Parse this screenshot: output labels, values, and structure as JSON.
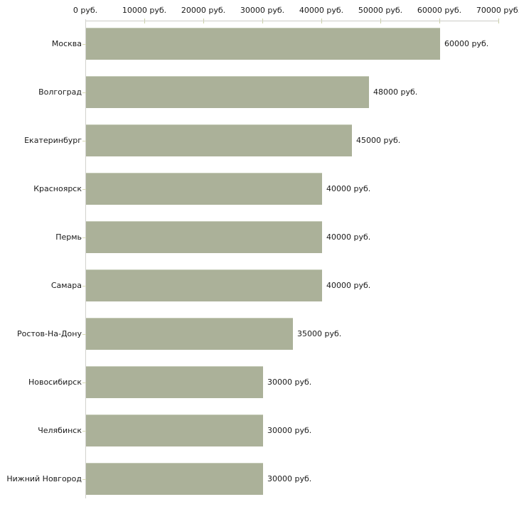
{
  "chart_data": {
    "type": "bar",
    "orientation": "horizontal",
    "title": "",
    "xlabel": "",
    "ylabel": "",
    "unit": "руб.",
    "xlim": [
      0,
      70000
    ],
    "grid": false,
    "legend": null,
    "categories": [
      "Москва",
      "Волгоград",
      "Екатеринбург",
      "Красноярск",
      "Пермь",
      "Самара",
      "Ростов-На-Дону",
      "Новосибирск",
      "Челябинск",
      "Нижний Новгород"
    ],
    "values": [
      60000,
      48000,
      45000,
      40000,
      40000,
      40000,
      35000,
      30000,
      30000,
      30000
    ],
    "value_labels": [
      "60000 руб.",
      "48000 руб.",
      "45000 руб.",
      "40000 руб.",
      "40000 руб.",
      "40000 руб.",
      "35000 руб.",
      "30000 руб.",
      "30000 руб.",
      "30000 руб."
    ],
    "x_ticks": [
      0,
      10000,
      20000,
      30000,
      40000,
      50000,
      60000,
      70000
    ],
    "x_tick_labels": [
      "0 руб.",
      "10000 руб.",
      "20000 руб.",
      "30000 руб.",
      "40000 руб.",
      "50000 руб.",
      "60000 руб.",
      "70000 руб."
    ],
    "colors": {
      "bar": "#abb199",
      "bar_top_edge": "#c6ccb8",
      "axis_line": "#ccccc6",
      "y_axis_line": "#d2d2ce",
      "x_tick": "#c9cfa4",
      "category_tick": "#d8dab6",
      "text": "#1a1a1a",
      "background": "#ffffff"
    }
  }
}
